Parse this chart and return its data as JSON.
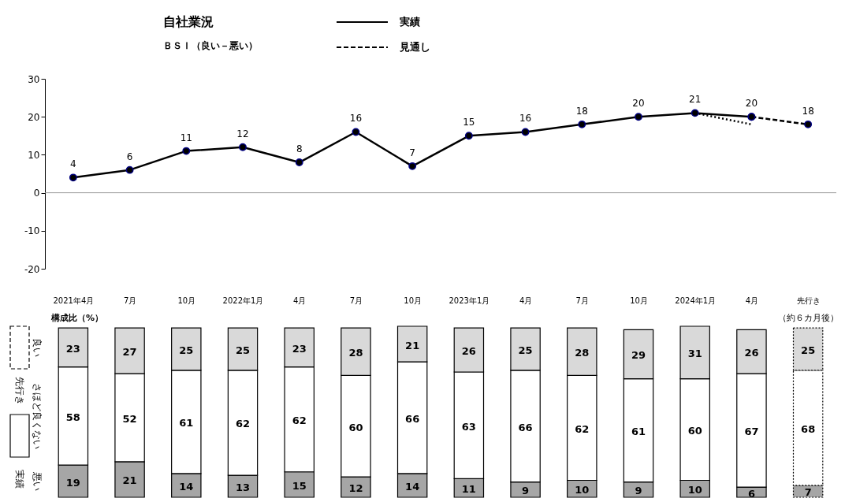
{
  "chart_data": [
    {
      "type": "line",
      "title": "自社業況",
      "subtitle": "ＢＳＩ（良い－悪い）",
      "categories": [
        "2021年4月",
        "7月",
        "10月",
        "2022年1月",
        "4月",
        "7月",
        "10月",
        "2023年1月",
        "4月",
        "7月",
        "10月",
        "2024年1月",
        "4月",
        "先行き"
      ],
      "ylim": [
        -20,
        30
      ],
      "yticks": [
        -20,
        -10,
        0,
        10,
        20,
        30
      ],
      "grid": false,
      "legend": "top",
      "marker": "circle",
      "ref_lines": [
        {
          "axis": "y",
          "value": 0,
          "color": "#999999"
        }
      ],
      "series": [
        {
          "name": "実績",
          "color": "#000000",
          "line_style": "solid",
          "values": [
            4,
            6,
            11,
            12,
            8,
            16,
            7,
            15,
            16,
            18,
            20,
            21,
            20,
            null
          ],
          "value_labels": [
            "4",
            "6",
            "11",
            "12",
            "8",
            "16",
            "7",
            "15",
            "16",
            "18",
            "20",
            "21",
            "20",
            null
          ]
        },
        {
          "name": "見通し",
          "color": "#000000",
          "line_style": "dashed",
          "values": [
            null,
            null,
            null,
            null,
            null,
            null,
            null,
            null,
            null,
            null,
            null,
            null,
            20,
            18
          ],
          "value_labels": [
            null,
            null,
            null,
            null,
            null,
            null,
            null,
            null,
            null,
            null,
            null,
            null,
            null,
            "18"
          ]
        },
        {
          "color": "#000000",
          "line_style": "dotted",
          "marker": "none",
          "values": [
            null,
            null,
            null,
            null,
            null,
            null,
            null,
            null,
            null,
            null,
            null,
            21,
            18,
            null
          ]
        }
      ]
    },
    {
      "type": "bar",
      "stacked": true,
      "data_labels": true,
      "categories": [
        null,
        null,
        null,
        null,
        null,
        null,
        null,
        null,
        null,
        null,
        null,
        null,
        null,
        null
      ],
      "annotations": [
        "構成比（%）",
        "（約６カ月後）",
        "先行き",
        "実績"
      ],
      "series": [
        {
          "name": "悪い",
          "color": "#a6a6a6",
          "values": [
            19,
            21,
            14,
            13,
            15,
            12,
            14,
            11,
            9,
            10,
            9,
            10,
            6,
            7
          ]
        },
        {
          "name": "さほど良くない",
          "color": "#ffffff",
          "values": [
            58,
            52,
            61,
            62,
            62,
            60,
            66,
            63,
            66,
            62,
            61,
            60,
            67,
            68
          ]
        },
        {
          "name": "良い",
          "color": "#d9d9d9",
          "values": [
            23,
            27,
            25,
            25,
            23,
            28,
            21,
            26,
            25,
            28,
            29,
            31,
            26,
            25
          ]
        }
      ]
    }
  ]
}
